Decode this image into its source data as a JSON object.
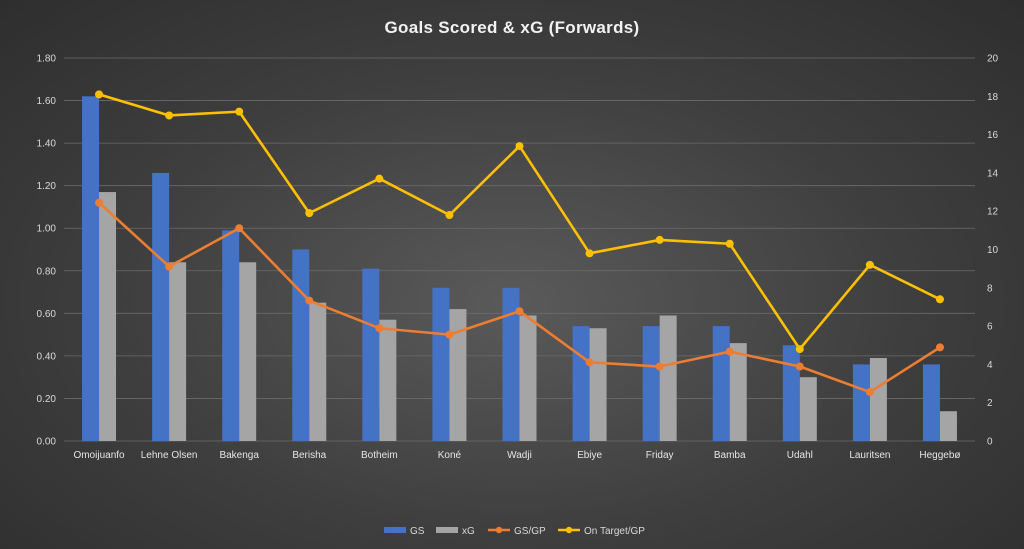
{
  "chart_data": {
    "type": "bar",
    "title": "Goals Scored & xG (Forwards)",
    "categories": [
      "Omoijuanfo",
      "Lehne Olsen",
      "Bakenga",
      "Berisha",
      "Botheim",
      "Koné",
      "Wadji",
      "Ebiye",
      "Friday",
      "Bamba",
      "Udahl",
      "Lauritsen",
      "Heggebø"
    ],
    "y_left": {
      "ylim": [
        0,
        1.8
      ],
      "ticks": [
        "0.00",
        "0.20",
        "0.40",
        "0.60",
        "0.80",
        "1.00",
        "1.20",
        "1.40",
        "1.60",
        "1.80"
      ]
    },
    "y_right": {
      "ylim": [
        0,
        20
      ],
      "ticks": [
        "0",
        "2",
        "4",
        "6",
        "8",
        "10",
        "12",
        "14",
        "16",
        "18",
        "20"
      ]
    },
    "grid": true,
    "legend_position": "bottom",
    "series": [
      {
        "name": "GS",
        "kind": "bar",
        "axis": "left",
        "color": "#4472c4",
        "values": [
          1.62,
          1.26,
          0.99,
          0.9,
          0.81,
          0.72,
          0.72,
          0.54,
          0.54,
          0.54,
          0.45,
          0.36,
          0.36
        ]
      },
      {
        "name": "xG",
        "kind": "bar",
        "axis": "left",
        "color": "#a5a5a5",
        "values": [
          1.17,
          0.84,
          0.84,
          0.65,
          0.57,
          0.62,
          0.59,
          0.53,
          0.59,
          0.46,
          0.3,
          0.39,
          0.14
        ]
      },
      {
        "name": "GS/GP",
        "kind": "line",
        "axis": "left",
        "color": "#ed7d31",
        "values": [
          1.12,
          0.82,
          1.0,
          0.66,
          0.53,
          0.5,
          0.61,
          0.37,
          0.35,
          0.42,
          0.35,
          0.23,
          0.44
        ]
      },
      {
        "name": "On Target/GP",
        "kind": "line",
        "axis": "right",
        "color": "#ffc000",
        "values": [
          18.1,
          17.0,
          17.2,
          11.9,
          13.7,
          11.8,
          15.4,
          9.8,
          10.5,
          10.3,
          4.8,
          9.2,
          7.4
        ]
      }
    ]
  }
}
